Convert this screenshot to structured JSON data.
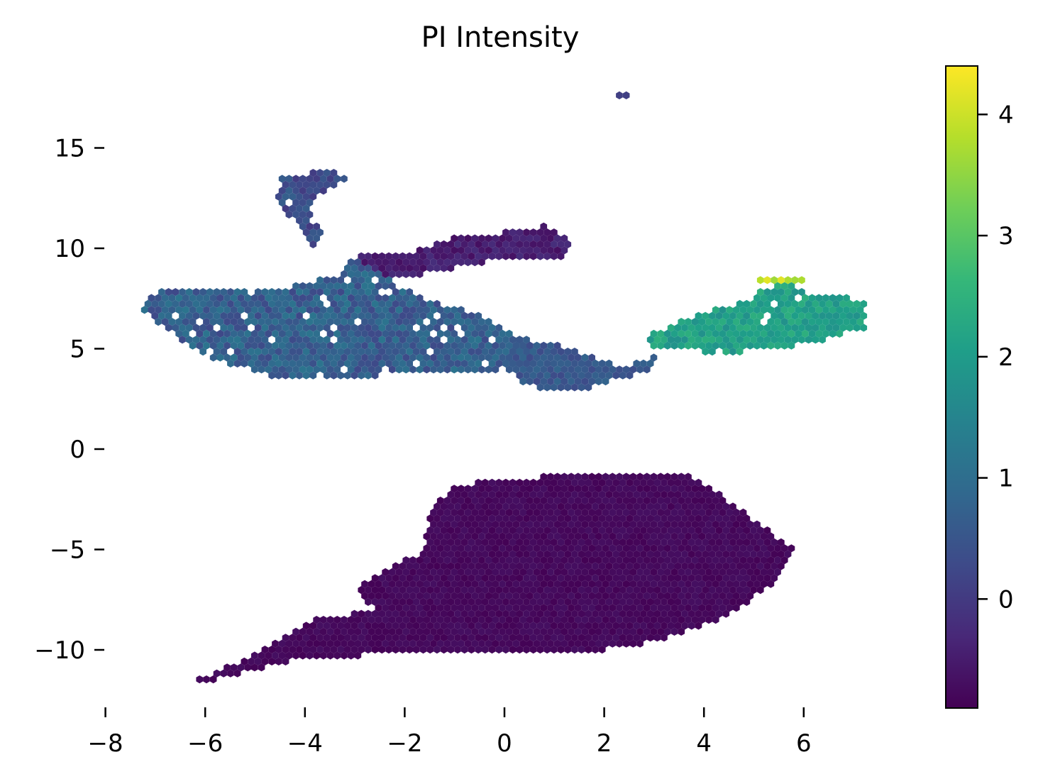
{
  "chart_data": {
    "type": "hexbin",
    "title": "PI Intensity",
    "xlabel": "",
    "ylabel": "",
    "xlim": [
      -8,
      7.5
    ],
    "ylim": [
      -12.5,
      19
    ],
    "xticks": [
      -8,
      -6,
      -4,
      -2,
      0,
      2,
      4,
      6
    ],
    "xtick_labels": [
      "−8",
      "−6",
      "−4",
      "−2",
      "0",
      "2",
      "4",
      "6"
    ],
    "yticks": [
      -10,
      -5,
      0,
      5,
      10,
      15
    ],
    "ytick_labels": [
      "−10",
      "−5",
      "0",
      "5",
      "10",
      "15"
    ],
    "colorbar": {
      "colormap": "viridis",
      "range": [
        -0.9,
        4.4
      ],
      "ticks": [
        0,
        1,
        2,
        3,
        4
      ],
      "tick_labels": [
        "0",
        "1",
        "2",
        "3",
        "4"
      ]
    },
    "grid": false,
    "colormap_stops": [
      "#440154",
      "#482878",
      "#3e4a89",
      "#31688e",
      "#26828e",
      "#1f9e89",
      "#35b779",
      "#6ece58",
      "#b5de2b",
      "#fde725"
    ],
    "regions": [
      {
        "name": "lower-cluster",
        "polygon": [
          [
            -6.2,
            -11.5
          ],
          [
            -5.0,
            -10.2
          ],
          [
            -3.8,
            -8.5
          ],
          [
            -2.6,
            -8.0
          ],
          [
            -3.0,
            -7.0
          ],
          [
            -2.0,
            -5.4
          ],
          [
            -1.6,
            -5.2
          ],
          [
            -1.5,
            -3.0
          ],
          [
            -1.0,
            -1.8
          ],
          [
            0.5,
            -1.4
          ],
          [
            3.5,
            -1.1
          ],
          [
            4.3,
            -2.2
          ],
          [
            5.0,
            -3.5
          ],
          [
            5.8,
            -5.0
          ],
          [
            5.5,
            -6.5
          ],
          [
            4.8,
            -7.8
          ],
          [
            4.0,
            -8.8
          ],
          [
            3.0,
            -9.6
          ],
          [
            1.5,
            -10.2
          ],
          [
            -2.0,
            -10.2
          ],
          [
            -4.0,
            -10.4
          ],
          [
            -5.8,
            -11.5
          ]
        ],
        "value": -0.78,
        "noise": 0.1
      },
      {
        "name": "left-body",
        "polygon": [
          [
            -7.3,
            7.0
          ],
          [
            -7.0,
            7.8
          ],
          [
            -6.0,
            8.0
          ],
          [
            -5.0,
            7.8
          ],
          [
            -4.0,
            8.2
          ],
          [
            -3.3,
            8.8
          ],
          [
            -3.0,
            9.5
          ],
          [
            -2.6,
            9.0
          ],
          [
            -2.2,
            8.2
          ],
          [
            -1.7,
            7.6
          ],
          [
            -1.2,
            7.2
          ],
          [
            -0.3,
            6.5
          ],
          [
            0.3,
            5.6
          ],
          [
            0.6,
            5.0
          ],
          [
            0.5,
            4.2
          ],
          [
            -0.2,
            3.9
          ],
          [
            -1.5,
            3.8
          ],
          [
            -3.0,
            3.6
          ],
          [
            -4.0,
            3.4
          ],
          [
            -5.0,
            3.8
          ],
          [
            -6.0,
            4.6
          ],
          [
            -6.8,
            6.0
          ]
        ],
        "value": 0.7,
        "noise": 0.45
      },
      {
        "name": "middle-bridge",
        "polygon": [
          [
            0.3,
            5.6
          ],
          [
            1.0,
            5.2
          ],
          [
            1.8,
            4.6
          ],
          [
            2.3,
            4.2
          ],
          [
            2.8,
            4.3
          ],
          [
            3.1,
            4.8
          ],
          [
            3.0,
            4.0
          ],
          [
            2.3,
            3.5
          ],
          [
            1.6,
            3.0
          ],
          [
            1.0,
            2.8
          ],
          [
            0.3,
            3.4
          ],
          [
            0.0,
            4.2
          ]
        ],
        "value": 0.55,
        "noise": 0.25
      },
      {
        "name": "right-cluster",
        "polygon": [
          [
            2.8,
            5.5
          ],
          [
            3.4,
            6.3
          ],
          [
            4.0,
            6.8
          ],
          [
            4.8,
            7.3
          ],
          [
            5.2,
            8.0
          ],
          [
            5.6,
            8.3
          ],
          [
            6.2,
            7.7
          ],
          [
            6.8,
            7.6
          ],
          [
            7.3,
            7.4
          ],
          [
            7.2,
            6.0
          ],
          [
            6.5,
            5.5
          ],
          [
            5.5,
            5.0
          ],
          [
            4.5,
            4.8
          ],
          [
            3.6,
            4.9
          ],
          [
            3.0,
            5.0
          ]
        ],
        "value": 2.1,
        "noise": 0.35
      },
      {
        "name": "upper-arm",
        "polygon": [
          [
            -1.7,
            9.9
          ],
          [
            -1.0,
            10.6
          ],
          [
            -0.2,
            10.7
          ],
          [
            0.2,
            11.0
          ],
          [
            0.8,
            11.1
          ],
          [
            1.3,
            10.4
          ],
          [
            1.2,
            9.5
          ],
          [
            0.6,
            9.4
          ],
          [
            -0.2,
            9.4
          ],
          [
            -1.0,
            9.0
          ],
          [
            -1.6,
            8.7
          ],
          [
            -2.3,
            8.6
          ],
          [
            -2.8,
            9.2
          ],
          [
            -3.0,
            9.7
          ]
        ],
        "value": -0.45,
        "noise": 0.25
      },
      {
        "name": "upper-branch",
        "polygon": [
          [
            -4.5,
            13.5
          ],
          [
            -3.6,
            13.9
          ],
          [
            -3.1,
            13.6
          ],
          [
            -3.8,
            12.6
          ],
          [
            -3.9,
            11.5
          ],
          [
            -3.5,
            10.4
          ],
          [
            -3.9,
            10.0
          ],
          [
            -4.2,
            11.2
          ],
          [
            -4.6,
            12.8
          ]
        ],
        "value": 0.35,
        "noise": 0.35
      },
      {
        "name": "outlier-top",
        "polygon": [
          [
            2.2,
            17.9
          ],
          [
            2.5,
            17.9
          ],
          [
            2.5,
            17.6
          ],
          [
            2.2,
            17.6
          ]
        ],
        "value": 0.1,
        "noise": 0.0
      },
      {
        "name": "outlier-high",
        "polygon": [
          [
            5.1,
            8.6
          ],
          [
            6.0,
            8.6
          ],
          [
            6.0,
            8.2
          ],
          [
            5.1,
            8.2
          ]
        ],
        "value": 3.9,
        "noise": 0.3
      }
    ]
  }
}
